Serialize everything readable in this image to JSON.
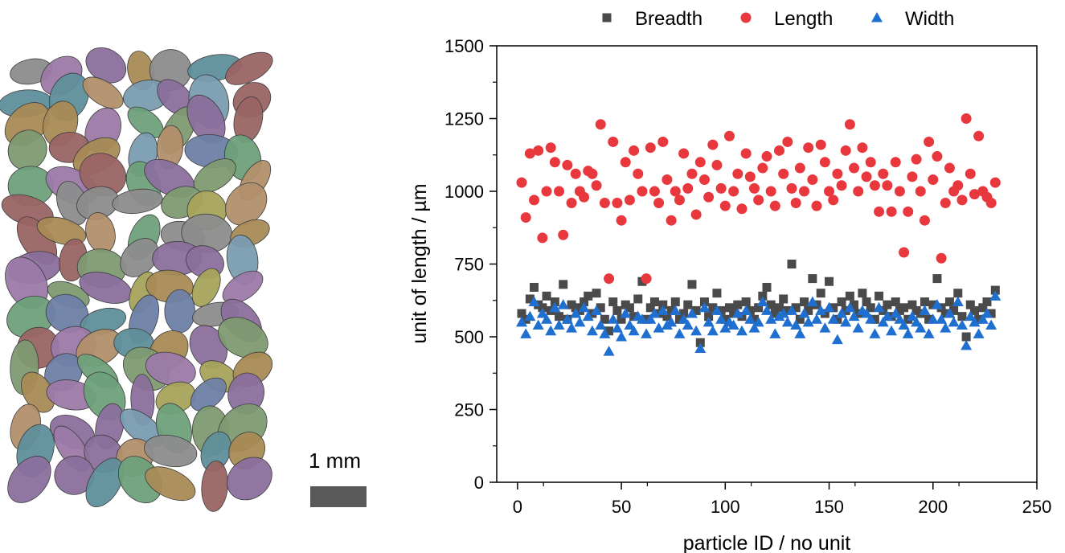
{
  "figure": {
    "scale_label": "1 mm",
    "scale_bar_color": "#595959"
  },
  "chart_data": {
    "type": "scatter",
    "xlabel": "particle ID / no unit",
    "ylabel": "unit of length / µm",
    "xlim": [
      -10,
      250
    ],
    "ylim": [
      0,
      1500
    ],
    "xticks": [
      0,
      50,
      100,
      150,
      200,
      250
    ],
    "yticks": [
      0,
      250,
      500,
      750,
      1000,
      1250,
      1500
    ],
    "grid": false,
    "legend_position": "top",
    "series": [
      {
        "name": "Breadth",
        "marker": "square",
        "color": "#4a4a4a",
        "x": [
          2,
          4,
          6,
          8,
          10,
          12,
          14,
          16,
          18,
          20,
          22,
          24,
          26,
          28,
          30,
          32,
          34,
          36,
          38,
          40,
          42,
          44,
          46,
          48,
          50,
          52,
          54,
          56,
          58,
          60,
          62,
          64,
          66,
          68,
          70,
          72,
          74,
          76,
          78,
          80,
          82,
          84,
          86,
          88,
          90,
          92,
          94,
          96,
          98,
          100,
          102,
          104,
          106,
          108,
          110,
          112,
          114,
          116,
          118,
          120,
          122,
          124,
          126,
          128,
          130,
          132,
          134,
          136,
          138,
          140,
          142,
          144,
          146,
          148,
          150,
          152,
          154,
          156,
          158,
          160,
          162,
          164,
          166,
          168,
          170,
          172,
          174,
          176,
          178,
          180,
          182,
          184,
          186,
          188,
          190,
          192,
          194,
          196,
          198,
          200,
          202,
          204,
          206,
          208,
          210,
          212,
          214,
          216,
          218,
          220,
          222,
          224,
          226,
          228,
          230
        ],
        "values": [
          580,
          560,
          630,
          670,
          610,
          600,
          640,
          590,
          620,
          570,
          680,
          560,
          610,
          600,
          590,
          620,
          640,
          580,
          650,
          600,
          560,
          520,
          620,
          590,
          560,
          610,
          600,
          570,
          630,
          690,
          560,
          600,
          620,
          580,
          610,
          570,
          590,
          620,
          560,
          580,
          610,
          680,
          590,
          480,
          620,
          570,
          600,
          650,
          590,
          560,
          600,
          580,
          610,
          570,
          620,
          590,
          560,
          600,
          640,
          670,
          610,
          580,
          600,
          630,
          590,
          750,
          600,
          560,
          620,
          590,
          700,
          610,
          650,
          580,
          690,
          600,
          560,
          620,
          590,
          640,
          610,
          580,
          650,
          620,
          600,
          560,
          640,
          590,
          610,
          570,
          620,
          590,
          600,
          560,
          610,
          590,
          580,
          620,
          560,
          610,
          700,
          600,
          580,
          620,
          590,
          650,
          570,
          500,
          610,
          590,
          560,
          600,
          620,
          580,
          660
        ],
        "outlier_note": ""
      },
      {
        "name": "Length",
        "marker": "circle",
        "color": "#e8383d",
        "x": [
          2,
          4,
          6,
          8,
          10,
          12,
          14,
          16,
          18,
          20,
          22,
          24,
          26,
          28,
          30,
          32,
          34,
          36,
          38,
          40,
          42,
          44,
          46,
          48,
          50,
          52,
          54,
          56,
          58,
          60,
          62,
          64,
          66,
          68,
          70,
          72,
          74,
          76,
          78,
          80,
          82,
          84,
          86,
          88,
          90,
          92,
          94,
          96,
          98,
          100,
          102,
          104,
          106,
          108,
          110,
          112,
          114,
          116,
          118,
          120,
          122,
          124,
          126,
          128,
          130,
          132,
          134,
          136,
          138,
          140,
          142,
          144,
          146,
          148,
          150,
          152,
          154,
          156,
          158,
          160,
          162,
          164,
          166,
          168,
          170,
          172,
          174,
          176,
          178,
          180,
          182,
          184,
          186,
          188,
          190,
          192,
          194,
          196,
          198,
          200,
          202,
          204,
          206,
          208,
          210,
          212,
          214,
          216,
          218,
          220,
          222,
          224,
          226,
          228,
          230
        ],
        "values": [
          1030,
          910,
          1130,
          970,
          1140,
          840,
          1000,
          1150,
          1100,
          1000,
          850,
          1090,
          960,
          1060,
          1000,
          980,
          1070,
          1060,
          1020,
          1230,
          960,
          700,
          1170,
          960,
          900,
          1100,
          970,
          1140,
          1060,
          1000,
          700,
          1150,
          1000,
          960,
          1170,
          1040,
          900,
          1000,
          970,
          1130,
          1010,
          1060,
          920,
          1100,
          1040,
          980,
          1160,
          1090,
          1010,
          950,
          1190,
          1000,
          1060,
          940,
          1130,
          1050,
          1010,
          970,
          1080,
          1120,
          1000,
          950,
          1140,
          1060,
          1170,
          1010,
          960,
          1080,
          1000,
          1150,
          1040,
          950,
          1160,
          1100,
          1000,
          970,
          1060,
          1020,
          1140,
          1230,
          1080,
          1000,
          1150,
          1050,
          1100,
          1020,
          930,
          1060,
          1020,
          930,
          1100,
          1000,
          790,
          930,
          1050,
          1110,
          1000,
          900,
          1170,
          1040,
          1120,
          770,
          960,
          1080,
          1000,
          1020,
          970,
          1250,
          1060,
          990,
          1190,
          1000,
          980,
          960,
          1030
        ],
        "outlier_note": ""
      },
      {
        "name": "Width",
        "marker": "triangle",
        "color": "#1f6fd1",
        "x": [
          2,
          4,
          6,
          8,
          10,
          12,
          14,
          16,
          18,
          20,
          22,
          24,
          26,
          28,
          30,
          32,
          34,
          36,
          38,
          40,
          42,
          44,
          46,
          48,
          50,
          52,
          54,
          56,
          58,
          60,
          62,
          64,
          66,
          68,
          70,
          72,
          74,
          76,
          78,
          80,
          82,
          84,
          86,
          88,
          90,
          92,
          94,
          96,
          98,
          100,
          102,
          104,
          106,
          108,
          110,
          112,
          114,
          116,
          118,
          120,
          122,
          124,
          126,
          128,
          130,
          132,
          134,
          136,
          138,
          140,
          142,
          144,
          146,
          148,
          150,
          152,
          154,
          156,
          158,
          160,
          162,
          164,
          166,
          168,
          170,
          172,
          174,
          176,
          178,
          180,
          182,
          184,
          186,
          188,
          190,
          192,
          194,
          196,
          198,
          200,
          202,
          204,
          206,
          208,
          210,
          212,
          214,
          216,
          218,
          220,
          222,
          224,
          226,
          228,
          230
        ],
        "values": [
          550,
          510,
          570,
          620,
          540,
          580,
          560,
          520,
          600,
          540,
          610,
          560,
          530,
          580,
          550,
          600,
          570,
          520,
          590,
          540,
          510,
          450,
          560,
          530,
          500,
          580,
          540,
          520,
          570,
          560,
          510,
          560,
          580,
          530,
          590,
          540,
          550,
          590,
          510,
          560,
          540,
          580,
          520,
          460,
          600,
          550,
          520,
          590,
          560,
          530,
          550,
          540,
          580,
          520,
          590,
          560,
          530,
          550,
          620,
          590,
          560,
          510,
          570,
          580,
          550,
          590,
          540,
          510,
          580,
          550,
          620,
          560,
          590,
          530,
          600,
          560,
          490,
          580,
          550,
          600,
          570,
          530,
          590,
          580,
          560,
          510,
          600,
          550,
          570,
          520,
          580,
          560,
          540,
          510,
          570,
          550,
          530,
          590,
          510,
          560,
          610,
          560,
          530,
          580,
          550,
          620,
          540,
          470,
          570,
          550,
          510,
          560,
          580,
          540,
          640
        ]
      }
    ]
  }
}
